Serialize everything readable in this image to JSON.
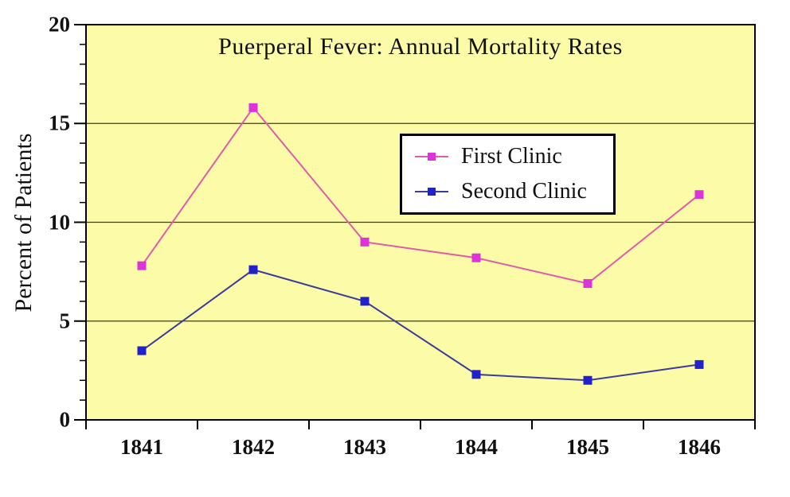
{
  "chart_data": {
    "type": "line",
    "title": "Puerperal Fever: Annual Mortality Rates",
    "ylabel": "Percent of Patients",
    "xlabel": "",
    "categories": [
      "1841",
      "1842",
      "1843",
      "1844",
      "1845",
      "1846"
    ],
    "series": [
      {
        "name": "First Clinic",
        "values": [
          7.8,
          15.8,
          9.0,
          8.2,
          6.9,
          11.4
        ],
        "line_color": "#e05ca8",
        "marker_color": "#dd33dd",
        "marker": "square"
      },
      {
        "name": "Second Clinic",
        "values": [
          3.5,
          7.6,
          6.0,
          2.3,
          2.0,
          2.8
        ],
        "line_color": "#3c3c99",
        "marker_color": "#2222cc",
        "marker": "square"
      }
    ],
    "ylim": [
      0,
      20
    ],
    "yticks_major": [
      0,
      5,
      10,
      15,
      20
    ],
    "ytick_minor_step": 1,
    "gridlines": [
      5,
      10,
      15
    ],
    "grid_on": true,
    "legend_position": "upper-center",
    "colors": {
      "plot_background": "#fbfba8",
      "grid_line": "#3f3f22",
      "axis": "#000000",
      "text": "#111111",
      "page_background": "#ffffff",
      "legend_background": "#ffffff"
    }
  }
}
